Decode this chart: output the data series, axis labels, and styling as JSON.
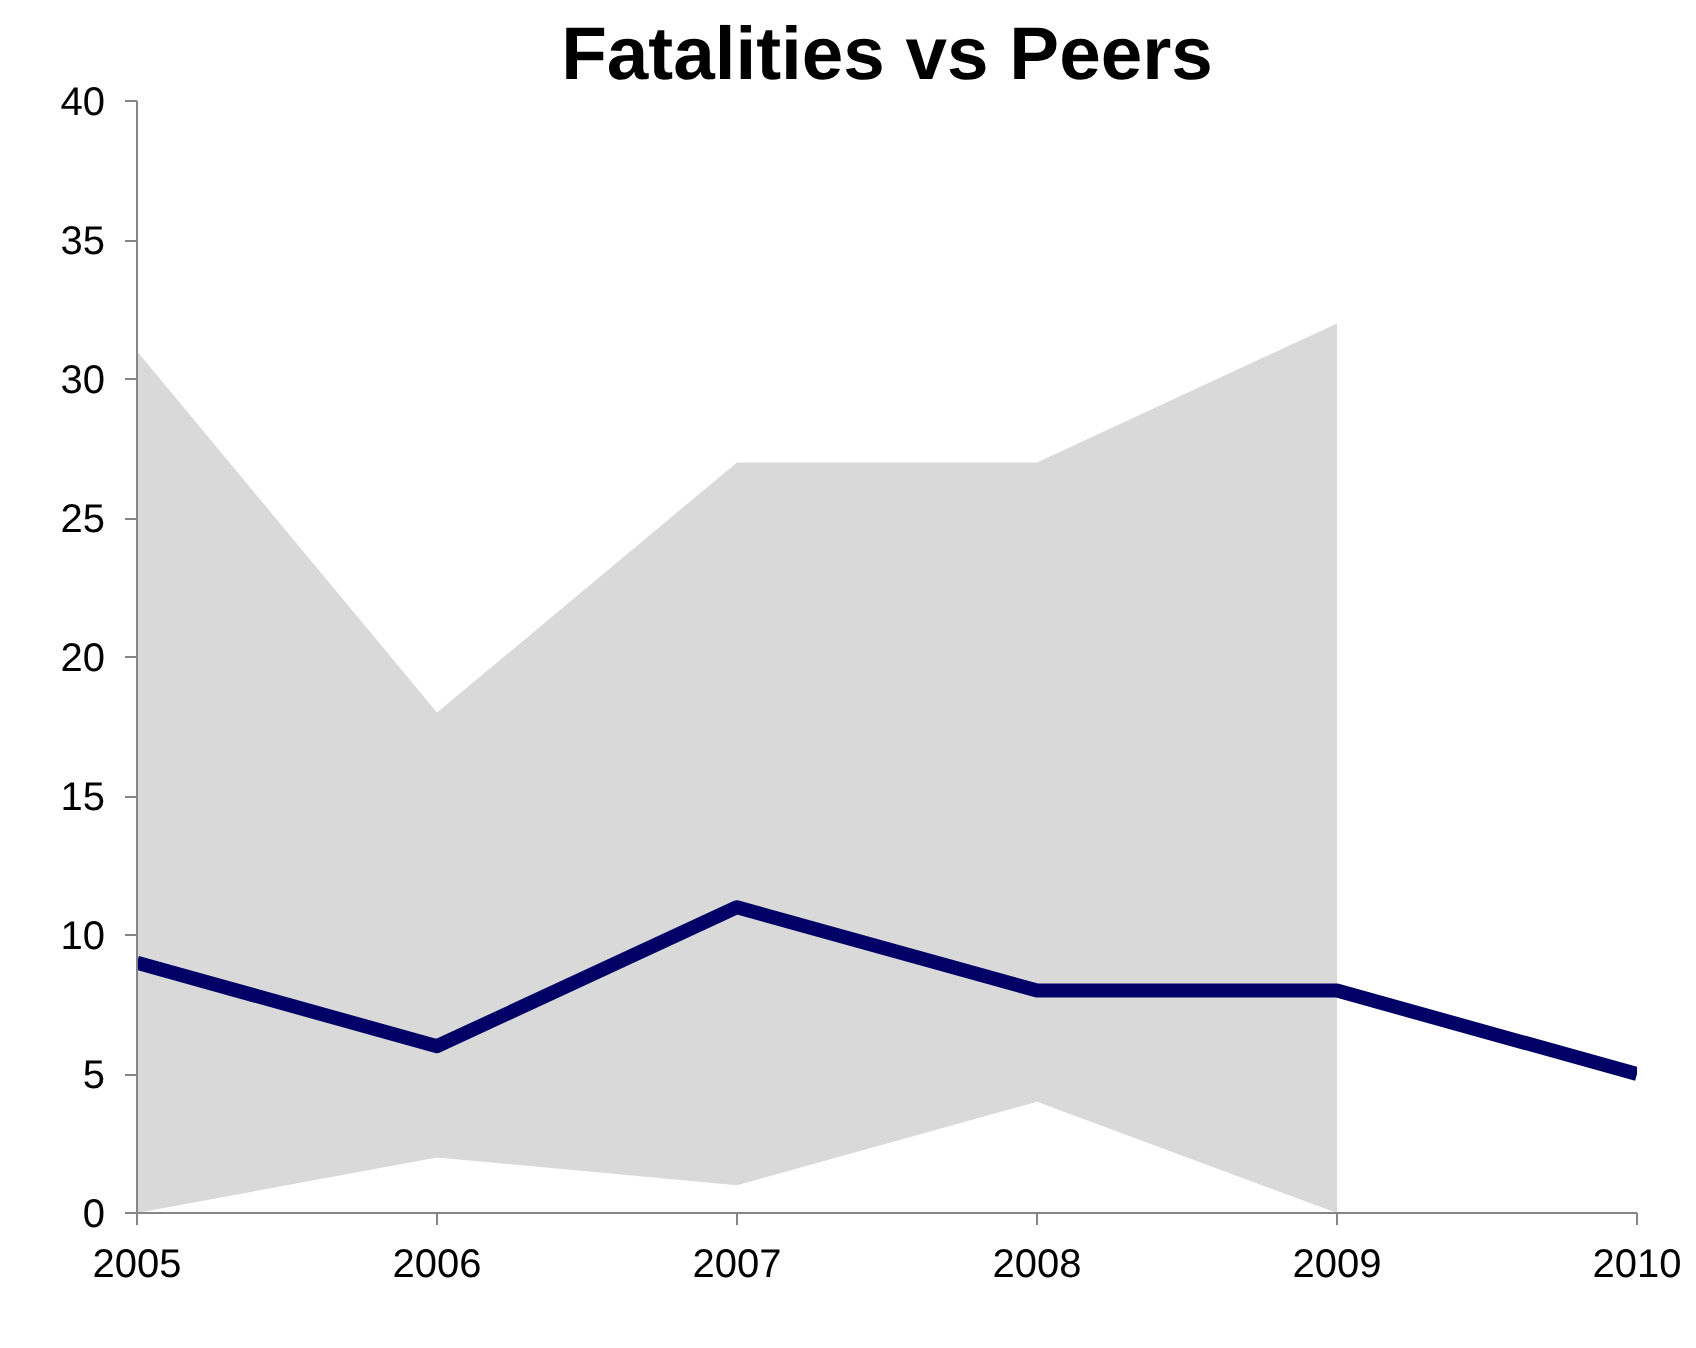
{
  "chart_data": {
    "type": "line",
    "title": "Fatalities vs Peers",
    "x": [
      2005,
      2006,
      2007,
      2008,
      2009,
      2010
    ],
    "series": [
      {
        "color": "#000066",
        "values": [
          9,
          6,
          11,
          8,
          8,
          5
        ],
        "lower": [
          0,
          2,
          1,
          4,
          0,
          null
        ],
        "upper": [
          31,
          18,
          27,
          27,
          32,
          null
        ]
      }
    ],
    "xlim": [
      2005,
      2010
    ],
    "xticks": [
      2005,
      2006,
      2007,
      2008,
      2009,
      2010
    ],
    "ylim": [
      0,
      40
    ],
    "yticks": [
      0,
      5,
      10,
      15,
      20,
      25,
      30,
      35,
      40
    ],
    "grid": false,
    "marker": "none",
    "line_style": "solid"
  }
}
